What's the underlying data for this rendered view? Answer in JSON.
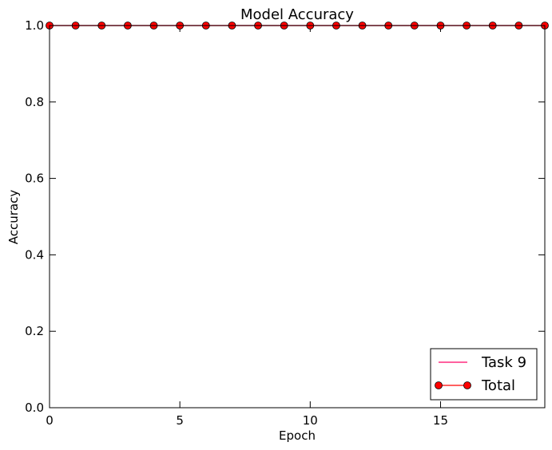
{
  "chart_data": {
    "type": "line",
    "title": "Model Accuracy",
    "xlabel": "Epoch",
    "ylabel": "Accuracy",
    "xlim": [
      0,
      19
    ],
    "ylim": [
      0.0,
      1.0
    ],
    "x_ticks": [
      0,
      5,
      10,
      15
    ],
    "x_tick_labels": [
      "0",
      "5",
      "10",
      "15"
    ],
    "y_ticks": [
      0.0,
      0.2,
      0.4,
      0.6,
      0.8,
      1.0
    ],
    "y_tick_labels": [
      "0.0",
      "0.2",
      "0.4",
      "0.6",
      "0.8",
      "1.0"
    ],
    "x": [
      0,
      1,
      2,
      3,
      4,
      5,
      6,
      7,
      8,
      9,
      10,
      11,
      12,
      13,
      14,
      15,
      16,
      17,
      18,
      19
    ],
    "series": [
      {
        "name": "Task 9",
        "color": "#ff0066",
        "marker": "none",
        "values": [
          1,
          1,
          1,
          1,
          1,
          1,
          1,
          1,
          1,
          1,
          1,
          1,
          1,
          1,
          1,
          1,
          1,
          1,
          1,
          1
        ]
      },
      {
        "name": "Total",
        "color": "#ff0000",
        "marker": "circle",
        "values": [
          1,
          1,
          1,
          1,
          1,
          1,
          1,
          1,
          1,
          1,
          1,
          1,
          1,
          1,
          1,
          1,
          1,
          1,
          1,
          1
        ]
      }
    ],
    "grid": false,
    "legend_position": "bottom-right"
  }
}
